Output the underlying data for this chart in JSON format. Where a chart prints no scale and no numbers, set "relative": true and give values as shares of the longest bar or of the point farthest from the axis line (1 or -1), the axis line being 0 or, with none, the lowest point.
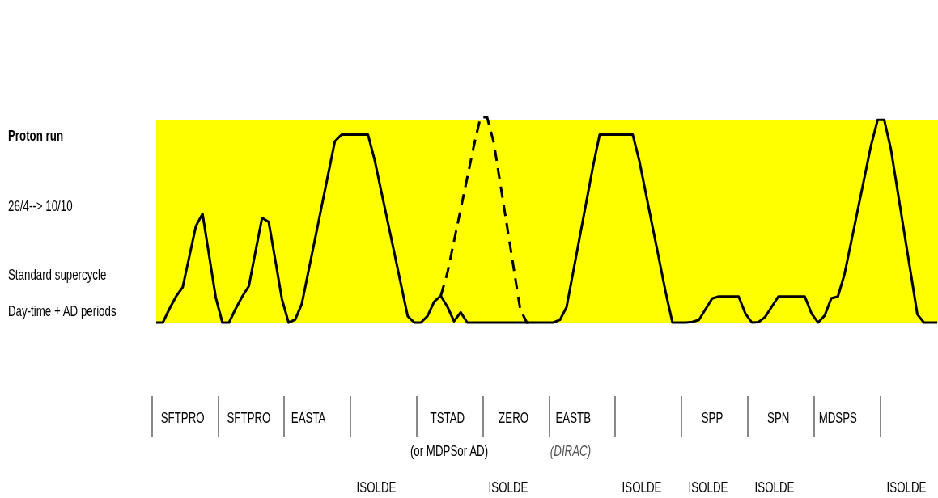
{
  "chart_data": {
    "type": "line",
    "relative": true,
    "legend": false,
    "categories": [
      null,
      null,
      null,
      null,
      "SFTPRO",
      null,
      null,
      null,
      null,
      null,
      null,
      null,
      null,
      null,
      "SFTPRO",
      null,
      null,
      null,
      null,
      null,
      null,
      null,
      null,
      "EASTA",
      null,
      null,
      null,
      null,
      null,
      null,
      null,
      null,
      null,
      null,
      null,
      null,
      null,
      null,
      null,
      null,
      null,
      null,
      null,
      null,
      "TSTAD",
      null,
      null,
      null,
      null,
      null,
      null,
      null,
      null,
      null,
      "ZERO",
      null,
      null,
      null,
      null,
      null,
      null,
      null,
      null,
      "EASTB",
      null,
      null,
      null,
      null,
      null,
      null,
      null,
      null,
      null,
      null,
      null,
      null,
      null,
      null,
      null,
      null,
      null,
      null,
      null,
      null,
      "SPP",
      null,
      null,
      null,
      null,
      null,
      null,
      null,
      null,
      null,
      "SPN",
      null,
      null,
      null,
      null,
      null,
      null,
      null,
      null,
      "MDSPS",
      null,
      null,
      null,
      null,
      null,
      null,
      null,
      null,
      null,
      null,
      null,
      null,
      null,
      null,
      null
    ],
    "annotations": [
      "Proton run",
      "26/4--> 10/10",
      "Standard supercycle",
      "Day-time + AD periods",
      "(or MDPSor AD)",
      "(DIRAC)",
      "ISOLDE",
      "ISOLDE",
      "ISOLDE",
      "ISOLDE",
      "ISOLDE",
      "ISOLDE"
    ],
    "series": [
      {
        "color": "#000000",
        "line_style": "solid",
        "values": [
          0,
          0,
          0.067,
          0.127,
          0.172,
          0.321,
          0.47,
          0.53,
          0.326,
          0.122,
          0,
          0,
          0.067,
          0.127,
          0.177,
          0.345,
          0.51,
          0.49,
          0.303,
          0.114,
          0,
          0.014,
          0.091,
          0.249,
          0.407,
          0.566,
          0.725,
          0.883,
          0.915,
          0.915,
          0.915,
          0.915,
          0.915,
          0.793,
          0.64,
          0.488,
          0.336,
          0.183,
          0.031,
          0,
          0,
          0.032,
          0.102,
          0.13,
          0.077,
          0.006,
          0.05,
          0,
          0,
          0,
          0,
          0,
          0,
          0,
          0,
          0,
          0,
          0,
          0,
          0,
          0,
          0.013,
          0.075,
          0.246,
          0.418,
          0.589,
          0.761,
          0.915,
          0.915,
          0.915,
          0.915,
          0.915,
          0.915,
          0.787,
          0.626,
          0.465,
          0.305,
          0.144,
          0,
          0,
          0,
          0.003,
          0.013,
          0.065,
          0.117,
          0.127,
          0.127,
          0.127,
          0.127,
          0.045,
          0,
          0.002,
          0.027,
          0.077,
          0.127,
          0.127,
          0.127,
          0.127,
          0.127,
          0.045,
          0,
          0.034,
          0.118,
          0.127,
          0.236,
          0.392,
          0.549,
          0.705,
          0.862,
          0.987,
          0.987,
          0.846,
          0.645,
          0.443,
          0.242,
          0.04,
          0,
          0,
          0
        ]
      },
      {
        "color": "#000000",
        "line_style": "dashed",
        "values": [
          null,
          null,
          null,
          null,
          null,
          null,
          null,
          null,
          null,
          null,
          null,
          null,
          null,
          null,
          null,
          null,
          null,
          null,
          null,
          null,
          null,
          null,
          null,
          null,
          null,
          null,
          null,
          null,
          null,
          null,
          null,
          null,
          null,
          null,
          null,
          null,
          null,
          null,
          null,
          null,
          null,
          null,
          null,
          0.13,
          0.242,
          0.397,
          0.551,
          0.706,
          0.861,
          1,
          1,
          0.878,
          0.675,
          0.472,
          0.268,
          0.065,
          0,
          0,
          null,
          null,
          null,
          null,
          null,
          null,
          null,
          null,
          null,
          null,
          null,
          null,
          null,
          null,
          null,
          null,
          null,
          null,
          null,
          null,
          null,
          null,
          null,
          null,
          null,
          null,
          null,
          null,
          null,
          null,
          null,
          null,
          null,
          null,
          null,
          null,
          null,
          null,
          null,
          null,
          null,
          null,
          null,
          null,
          null,
          null,
          null,
          null,
          null,
          null,
          null,
          null,
          null,
          null,
          null,
          null,
          null,
          null,
          null,
          null,
          null
        ]
      }
    ]
  }
}
